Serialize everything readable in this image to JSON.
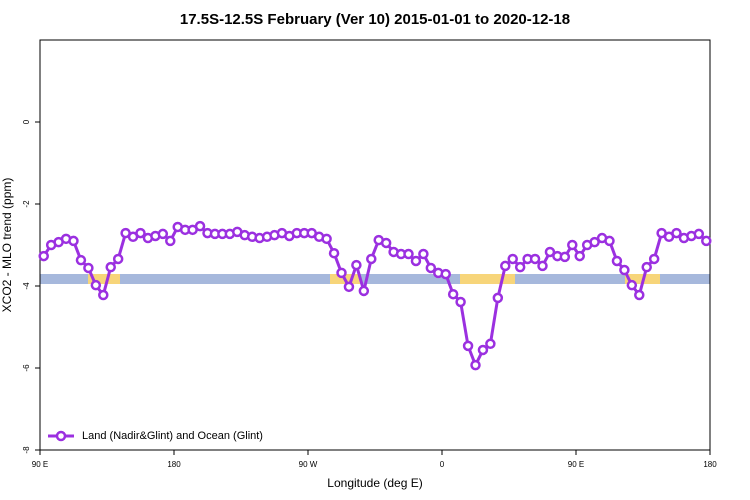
{
  "chart_data": {
    "type": "line",
    "title": "17.5S-12.5S February (Ver 10)   2015-01-01 to 2020-12-18",
    "xlabel": "Longitude (deg E)",
    "ylabel": "XCO2 - MLO trend (ppm)",
    "xlim": [
      90,
      540
    ],
    "ylim": [
      -8,
      2
    ],
    "xticks": [
      {
        "value": 90,
        "label": "90 E"
      },
      {
        "value": 180,
        "label": "180"
      },
      {
        "value": 270,
        "label": "90 W"
      },
      {
        "value": 360,
        "label": "0"
      },
      {
        "value": 450,
        "label": "90 E"
      },
      {
        "value": 540,
        "label": "180"
      }
    ],
    "yticks": [
      0,
      -2,
      -4,
      -6,
      -8
    ],
    "legend": "bottomleft",
    "x": [
      92.5,
      97.5,
      102.5,
      107.5,
      112.5,
      117.5,
      122.5,
      127.5,
      132.5,
      137.5,
      142.5,
      147.5,
      152.5,
      157.5,
      162.5,
      167.5,
      172.5,
      177.5,
      182.5,
      187.5,
      192.5,
      197.5,
      202.5,
      207.5,
      212.5,
      217.5,
      222.5,
      227.5,
      232.5,
      237.5,
      242.5,
      247.5,
      252.5,
      257.5,
      262.5,
      267.5,
      272.5,
      277.5,
      282.5,
      287.5,
      292.5,
      297.5,
      302.5,
      307.5,
      312.5,
      317.5,
      322.5,
      327.5,
      332.5,
      337.5,
      342.5,
      347.5,
      352.5,
      357.5,
      362.5,
      367.5,
      372.5,
      377.5,
      382.5,
      387.5,
      392.5,
      397.5,
      402.5,
      407.5,
      412.5,
      417.5,
      422.5,
      427.5,
      432.5,
      437.5,
      442.5,
      447.5,
      452.5,
      457.5,
      462.5,
      467.5,
      472.5,
      477.5,
      482.5,
      487.5,
      492.5,
      497.5,
      502.5,
      507.5,
      512.5,
      517.5,
      522.5,
      527.5,
      532.5,
      537.5
    ],
    "series": [
      {
        "name": "Land (Nadir&Glint) and Ocean (Glint)",
        "color": "#9b30e0",
        "values": [
          -3.27,
          -3.0,
          -2.93,
          -2.85,
          -2.9,
          -3.37,
          -3.56,
          -3.98,
          -4.22,
          -3.54,
          -3.34,
          -2.71,
          -2.8,
          -2.71,
          -2.83,
          -2.78,
          -2.73,
          -2.9,
          -2.56,
          -2.63,
          -2.63,
          -2.54,
          -2.71,
          -2.73,
          -2.73,
          -2.73,
          -2.68,
          -2.76,
          -2.8,
          -2.83,
          -2.8,
          -2.76,
          -2.71,
          -2.78,
          -2.71,
          -2.71,
          -2.71,
          -2.8,
          -2.85,
          -3.2,
          -3.68,
          -4.02,
          -3.49,
          -4.12,
          -3.34,
          -2.88,
          -2.95,
          -3.17,
          -3.22,
          -3.22,
          -3.39,
          -3.22,
          -3.56,
          -3.68,
          -3.71,
          -4.2,
          -4.39,
          -5.46,
          -5.93,
          -5.56,
          -5.41,
          -4.29,
          -3.51,
          -3.34,
          -3.54,
          -3.34,
          -3.34,
          -3.51,
          -3.17,
          -3.27,
          -3.29,
          -3.0,
          -3.27,
          -3.0,
          -2.93,
          -2.83,
          -2.9,
          -3.39,
          -3.61,
          -3.98,
          -4.22,
          -3.54,
          -3.34,
          -2.71,
          -2.8,
          -2.71,
          -2.83,
          -2.78,
          -2.73,
          -2.9
        ]
      }
    ]
  }
}
